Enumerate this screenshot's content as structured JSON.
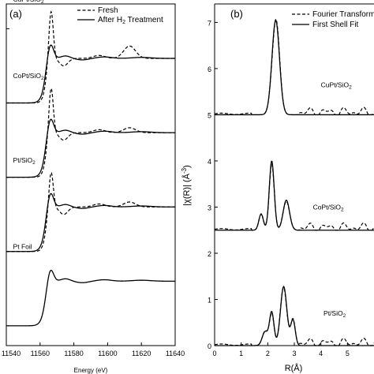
{
  "chart_data": [
    {
      "id": "a",
      "type": "line",
      "panel_label": "(a)",
      "xlabel": "Energy (eV)",
      "xlim": [
        11540,
        11640
      ],
      "xticks": [
        11540,
        11560,
        11580,
        11600,
        11620,
        11640
      ],
      "xtick_labels": [
        "11540",
        "11560",
        "11580",
        "11600",
        "11620",
        "11640"
      ],
      "legend": {
        "position": "top-right",
        "entries": [
          {
            "label": "Fresh",
            "style": "dashed"
          },
          {
            "label_parts": [
              "After H",
              "2",
              " Treatment"
            ],
            "style": "solid"
          }
        ]
      },
      "samples": [
        {
          "name_parts": [
            "CuPt/SiO",
            "2"
          ],
          "baseline": 4.5,
          "edge": 0.9,
          "post": 1.0,
          "white_line": 0.35,
          "fresh_white_line": 1.0,
          "fresh_osc": 0.25,
          "fresh": true
        },
        {
          "name_parts": [
            "CoPt/SiO",
            "2"
          ],
          "baseline": 3.0,
          "edge": 0.9,
          "post": 1.0,
          "white_line": 0.35,
          "fresh_white_line": 0.95,
          "fresh_osc": 0.1,
          "fresh": true
        },
        {
          "name_parts": [
            "Pt/SiO",
            "2"
          ],
          "baseline": 1.5,
          "edge": 0.9,
          "post": 1.0,
          "white_line": 0.35,
          "fresh_white_line": 0.75,
          "fresh_osc": 0.1,
          "fresh": true
        },
        {
          "name_parts": [
            "Pt Foil"
          ],
          "baseline": 0.0,
          "edge": 0.9,
          "post": 1.0,
          "white_line": 0.3,
          "fresh": false
        }
      ],
      "ylim": [
        -0.4,
        6.5
      ]
    },
    {
      "id": "b",
      "type": "line",
      "panel_label": "(b)",
      "xlabel": "R(Å)",
      "ylabel": "|χ(R)| (Å",
      "ylabel_sup": "-3",
      "ylabel_close": ")",
      "xlim": [
        0,
        6
      ],
      "ylim": [
        0,
        7.4
      ],
      "xticks": [
        0,
        1,
        2,
        3,
        4,
        5
      ],
      "xtick_labels": [
        "0",
        "1",
        "2",
        "3",
        "4",
        "5"
      ],
      "yticks": [
        0,
        1,
        2,
        3,
        4,
        5,
        6,
        7
      ],
      "ytick_labels": [
        "0",
        "1",
        "2",
        "3",
        "4",
        "5",
        "6",
        "7"
      ],
      "legend": {
        "position": "top-right",
        "entries": [
          {
            "label": "Fourier Transform",
            "style": "dashed"
          },
          {
            "label": "First Shell Fit",
            "style": "solid"
          }
        ]
      },
      "series": [
        {
          "name_parts": [
            "CuPt/SiO",
            "2"
          ],
          "offset": 5.0,
          "peaks": [
            {
              "r": 2.3,
              "h": 2.05,
              "w": 0.2
            }
          ],
          "label_pos": [
            4.0,
            5.6
          ]
        },
        {
          "name_parts": [
            "CoPt/SiO",
            "2"
          ],
          "offset": 2.5,
          "peaks": [
            {
              "r": 1.75,
              "h": 0.35,
              "w": 0.12
            },
            {
              "r": 2.15,
              "h": 1.5,
              "w": 0.13
            },
            {
              "r": 2.7,
              "h": 0.65,
              "w": 0.17
            }
          ],
          "label_pos": [
            3.7,
            2.95
          ]
        },
        {
          "name_parts": [
            "Pt/SiO",
            "2"
          ],
          "offset": 0.0,
          "peaks": [
            {
              "r": 1.9,
              "h": 0.3,
              "w": 0.15
            },
            {
              "r": 2.15,
              "h": 0.72,
              "w": 0.12
            },
            {
              "r": 2.6,
              "h": 1.28,
              "w": 0.17
            },
            {
              "r": 2.95,
              "h": 0.55,
              "w": 0.12
            }
          ],
          "label_pos": [
            4.1,
            0.65
          ]
        }
      ]
    }
  ]
}
